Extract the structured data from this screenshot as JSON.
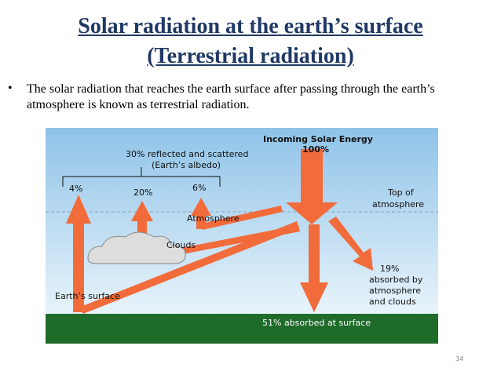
{
  "header": {
    "title": [
      "Solar radiation at the earth’s surface",
      "(Terrestrial radiation)"
    ]
  },
  "bullet": "The solar radiation that reaches the earth surface after passing through the earth’s atmosphere is known as terrestrial radiation.",
  "diagram": {
    "incoming": "Incoming Solar Energy",
    "incoming_pct": "100%",
    "reflected": [
      "30% reflected and scattered",
      "(Earth’s albedo)"
    ],
    "reflected_parts": [
      "4%",
      "20%",
      "6%"
    ],
    "top": [
      "Top of",
      "atmosphere"
    ],
    "atmosphere": "Atmosphere",
    "clouds": "Clouds",
    "absorbed_atm": [
      "19%",
      "absorbed by",
      "atmosphere",
      "and clouds"
    ],
    "surface": "Earth’s surface",
    "absorbed_surface": "51% absorbed at surface"
  },
  "page_number": "34"
}
